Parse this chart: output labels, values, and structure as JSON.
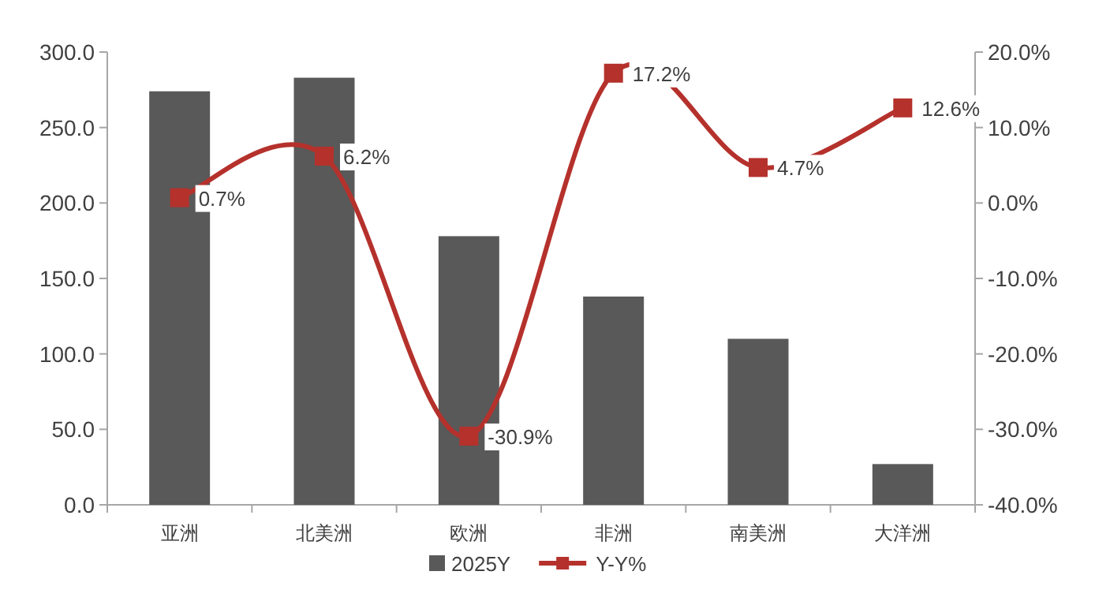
{
  "chart_data": {
    "type": "bar",
    "categories": [
      "亚洲",
      "北美洲",
      "欧洲",
      "非洲",
      "南美洲",
      "大洋洲"
    ],
    "series": [
      {
        "name": "2025Y",
        "color": "#595959",
        "values": [
          274,
          283,
          178,
          138,
          110,
          27
        ]
      },
      {
        "name": "Y-Y%",
        "type": "line",
        "axis": "y2",
        "color": "#b5312c",
        "marker": "square",
        "values": [
          0.7,
          6.2,
          -30.9,
          17.2,
          4.7,
          12.6
        ],
        "value_labels": [
          "0.7%",
          "6.2%",
          "-30.9%",
          "17.2%",
          "4.7%",
          "12.6%"
        ]
      }
    ],
    "ylim": [
      0,
      300
    ],
    "yticks": [
      {
        "value": 0,
        "label": "0.0"
      },
      {
        "value": 50,
        "label": "50.0"
      },
      {
        "value": 100,
        "label": "100.0"
      },
      {
        "value": 150,
        "label": "150.0"
      },
      {
        "value": 200,
        "label": "200.0"
      },
      {
        "value": 250,
        "label": "250.0"
      },
      {
        "value": 300,
        "label": "300.0"
      }
    ],
    "y2lim": [
      -40,
      20
    ],
    "y2ticks": [
      {
        "value": -40,
        "label": "-40.0%"
      },
      {
        "value": -30,
        "label": "-30.0%"
      },
      {
        "value": -20,
        "label": "-20.0%"
      },
      {
        "value": -10,
        "label": "-10.0%"
      },
      {
        "value": 0,
        "label": "0.0%"
      },
      {
        "value": 10,
        "label": "10.0%"
      },
      {
        "value": 20,
        "label": "20.0%"
      }
    ],
    "legend": "bottom",
    "grid": false
  }
}
